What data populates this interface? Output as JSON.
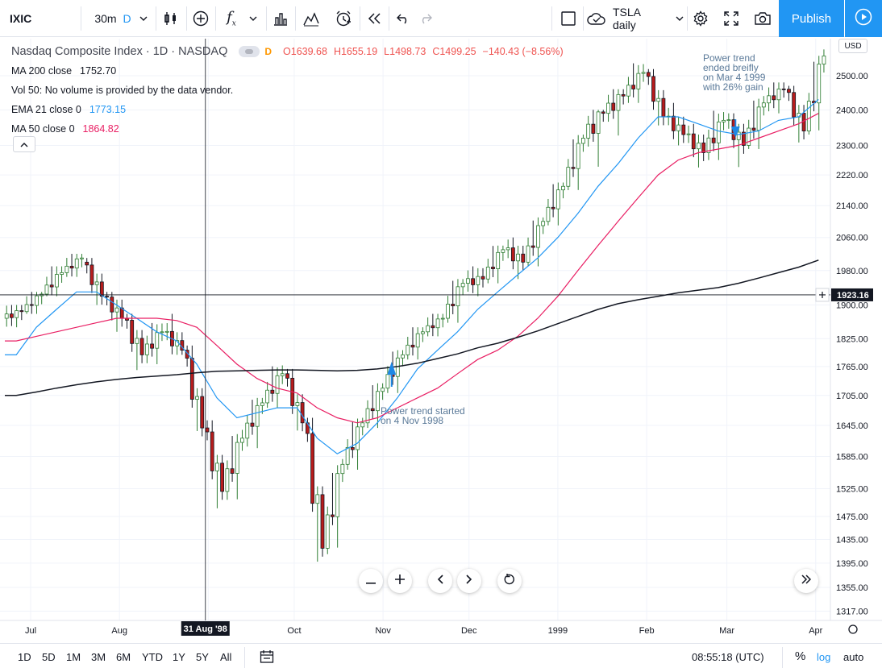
{
  "toolbar": {
    "symbol": "IXIC",
    "interval": "30m",
    "interval_flag": "D",
    "layout_name": "TSLA daily",
    "publish_label": "Publish"
  },
  "legend": {
    "title": "Nasdaq Composite Index · 1D · NASDAQ",
    "flag": "D",
    "open": "O1639.68",
    "high": "H1655.19",
    "low": "L1498.73",
    "close": "C1499.25",
    "change": "−140.43 (−8.56%)",
    "ma200_label": "MA 200 close",
    "ma200_value": "1752.70",
    "vol_label": "Vol 50: No volume is provided by the data vendor.",
    "ema21_label": "EMA 21 close 0",
    "ema21_value": "1773.15",
    "ma50_label": "MA 50 close 0",
    "ma50_value": "1864.82"
  },
  "price_axis": {
    "currency": "USD",
    "ticks": [
      "2500.00",
      "2400.00",
      "2300.00",
      "2220.00",
      "2140.00",
      "2060.00",
      "1980.00",
      "1900.00",
      "1825.00",
      "1765.00",
      "1705.00",
      "1645.00",
      "1585.00",
      "1525.00",
      "1475.00",
      "1435.00",
      "1395.00",
      "1355.00",
      "1317.00"
    ],
    "crosshair_value": "1923.16"
  },
  "time_axis": {
    "labels": [
      "Jul",
      "Aug",
      "Oct",
      "Nov",
      "Dec",
      "1999",
      "Feb",
      "Mar",
      "Apr"
    ],
    "crosshair_label": "31 Aug '98"
  },
  "annotations": {
    "start_note_1": "Power trend started",
    "start_note_2": "on 4 Nov 1998",
    "end_note_1": "Power trend",
    "end_note_2": "ended breifly",
    "end_note_3": "on Mar 4 1999",
    "end_note_4": "with 26% gain"
  },
  "bottom": {
    "ranges": [
      "1D",
      "5D",
      "1M",
      "3M",
      "6M",
      "YTD",
      "1Y",
      "5Y",
      "All"
    ],
    "time": "08:55:18 (UTC)",
    "pct": "%",
    "log": "log",
    "auto": "auto"
  },
  "colors": {
    "up": "#26a69a",
    "down": "#ef5350",
    "candle_up_fill": "#ffffff",
    "candle_up_border": "#2e7d32",
    "candle_down_fill": "#b71c1c",
    "ema21": "#2196f3",
    "ma50": "#e91e63",
    "ma200": "#131722",
    "accent": "#2196f3"
  },
  "chart_data": {
    "type": "candlestick",
    "title": "Nasdaq Composite Index · 1D · NASDAQ",
    "scale": "log",
    "ylim": [
      1317,
      2580
    ],
    "x_range": [
      "1998-06-22",
      "1999-04-05"
    ],
    "weekly_ohlc_approx": [
      {
        "t": "1998-06-26",
        "o": 1870,
        "h": 1900,
        "l": 1850,
        "c": 1885
      },
      {
        "t": "1998-07-03",
        "o": 1885,
        "h": 1930,
        "l": 1880,
        "c": 1925
      },
      {
        "t": "1998-07-10",
        "o": 1925,
        "h": 1990,
        "l": 1920,
        "c": 1975
      },
      {
        "t": "1998-07-17",
        "o": 1975,
        "h": 2020,
        "l": 1965,
        "c": 2010
      },
      {
        "t": "1998-07-24",
        "o": 2000,
        "h": 2010,
        "l": 1900,
        "c": 1920
      },
      {
        "t": "1998-07-31",
        "o": 1920,
        "h": 1930,
        "l": 1840,
        "c": 1870
      },
      {
        "t": "1998-08-07",
        "o": 1870,
        "h": 1880,
        "l": 1750,
        "c": 1790
      },
      {
        "t": "1998-08-14",
        "o": 1790,
        "h": 1860,
        "l": 1770,
        "c": 1840
      },
      {
        "t": "1998-08-21",
        "o": 1840,
        "h": 1880,
        "l": 1790,
        "c": 1800
      },
      {
        "t": "1998-08-28",
        "o": 1800,
        "h": 1810,
        "l": 1620,
        "c": 1640
      },
      {
        "t": "1998-09-04",
        "o": 1640,
        "h": 1655,
        "l": 1470,
        "c": 1520
      },
      {
        "t": "1998-09-11",
        "o": 1520,
        "h": 1640,
        "l": 1500,
        "c": 1620
      },
      {
        "t": "1998-09-18",
        "o": 1620,
        "h": 1700,
        "l": 1600,
        "c": 1690
      },
      {
        "t": "1998-09-25",
        "o": 1690,
        "h": 1770,
        "l": 1680,
        "c": 1750
      },
      {
        "t": "1998-10-02",
        "o": 1750,
        "h": 1760,
        "l": 1630,
        "c": 1650
      },
      {
        "t": "1998-10-09",
        "o": 1650,
        "h": 1660,
        "l": 1355,
        "c": 1420
      },
      {
        "t": "1998-10-16",
        "o": 1420,
        "h": 1580,
        "l": 1410,
        "c": 1570
      },
      {
        "t": "1998-10-23",
        "o": 1570,
        "h": 1660,
        "l": 1560,
        "c": 1650
      },
      {
        "t": "1998-10-30",
        "o": 1650,
        "h": 1730,
        "l": 1640,
        "c": 1720
      },
      {
        "t": "1998-11-06",
        "o": 1720,
        "h": 1800,
        "l": 1710,
        "c": 1790
      },
      {
        "t": "1998-11-13",
        "o": 1790,
        "h": 1850,
        "l": 1780,
        "c": 1840
      },
      {
        "t": "1998-11-20",
        "o": 1840,
        "h": 1880,
        "l": 1830,
        "c": 1870
      },
      {
        "t": "1998-11-27",
        "o": 1870,
        "h": 1960,
        "l": 1860,
        "c": 1950
      },
      {
        "t": "1998-12-04",
        "o": 1950,
        "h": 1990,
        "l": 1920,
        "c": 1960
      },
      {
        "t": "1998-12-11",
        "o": 1960,
        "h": 2040,
        "l": 1950,
        "c": 2030
      },
      {
        "t": "1998-12-18",
        "o": 2030,
        "h": 2060,
        "l": 1960,
        "c": 2000
      },
      {
        "t": "1998-12-25",
        "o": 2000,
        "h": 2110,
        "l": 1990,
        "c": 2100
      },
      {
        "t": "1999-01-01",
        "o": 2100,
        "h": 2200,
        "l": 2090,
        "c": 2190
      },
      {
        "t": "1999-01-08",
        "o": 2190,
        "h": 2330,
        "l": 2180,
        "c": 2320
      },
      {
        "t": "1999-01-15",
        "o": 2320,
        "h": 2400,
        "l": 2220,
        "c": 2390
      },
      {
        "t": "1999-01-22",
        "o": 2390,
        "h": 2460,
        "l": 2320,
        "c": 2440
      },
      {
        "t": "1999-01-29",
        "o": 2440,
        "h": 2540,
        "l": 2420,
        "c": 2510
      },
      {
        "t": "1999-02-05",
        "o": 2510,
        "h": 2520,
        "l": 2350,
        "c": 2380
      },
      {
        "t": "1999-02-12",
        "o": 2380,
        "h": 2420,
        "l": 2300,
        "c": 2330
      },
      {
        "t": "1999-02-19",
        "o": 2330,
        "h": 2360,
        "l": 2240,
        "c": 2280
      },
      {
        "t": "1999-02-26",
        "o": 2280,
        "h": 2410,
        "l": 2260,
        "c": 2370
      },
      {
        "t": "1999-03-05",
        "o": 2370,
        "h": 2390,
        "l": 2230,
        "c": 2300
      },
      {
        "t": "1999-03-12",
        "o": 2300,
        "h": 2440,
        "l": 2290,
        "c": 2420
      },
      {
        "t": "1999-03-19",
        "o": 2420,
        "h": 2480,
        "l": 2390,
        "c": 2460
      },
      {
        "t": "1999-03-26",
        "o": 2460,
        "h": 2470,
        "l": 2300,
        "c": 2340
      },
      {
        "t": "1999-04-02",
        "o": 2340,
        "h": 2580,
        "l": 2330,
        "c": 2560
      }
    ],
    "series": [
      {
        "name": "EMA 21 close 0",
        "values_approx": [
          1790,
          1850,
          1890,
          1930,
          1930,
          1900,
          1870,
          1840,
          1820,
          1770,
          1700,
          1660,
          1670,
          1680,
          1680,
          1620,
          1590,
          1610,
          1650,
          1700,
          1760,
          1800,
          1840,
          1890,
          1930,
          1970,
          2010,
          2060,
          2120,
          2190,
          2250,
          2320,
          2380,
          2380,
          2360,
          2340,
          2330,
          2340,
          2370,
          2380,
          2430
        ]
      },
      {
        "name": "MA 50 close 0",
        "values_approx": [
          1820,
          1830,
          1840,
          1850,
          1860,
          1870,
          1870,
          1870,
          1865,
          1850,
          1810,
          1770,
          1740,
          1720,
          1710,
          1680,
          1660,
          1650,
          1660,
          1680,
          1700,
          1720,
          1750,
          1780,
          1800,
          1830,
          1870,
          1920,
          1980,
          2040,
          2100,
          2160,
          2220,
          2260,
          2280,
          2290,
          2300,
          2320,
          2340,
          2360,
          2390
        ]
      },
      {
        "name": "MA 200 close",
        "values_approx": [
          1705,
          1712,
          1720,
          1727,
          1733,
          1738,
          1742,
          1745,
          1748,
          1752,
          1755,
          1756,
          1757,
          1758,
          1758,
          1757,
          1756,
          1757,
          1760,
          1765,
          1772,
          1782,
          1792,
          1805,
          1815,
          1828,
          1842,
          1858,
          1874,
          1890,
          1903,
          1912,
          1920,
          1928,
          1934,
          1940,
          1950,
          1962,
          1975,
          1988,
          2005
        ]
      }
    ]
  }
}
